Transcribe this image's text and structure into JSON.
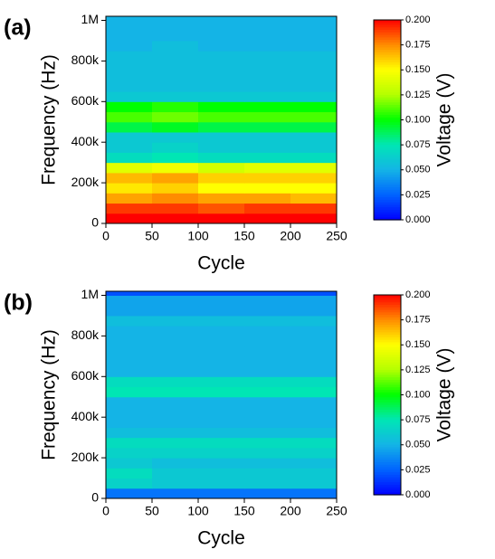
{
  "chart_data": [
    {
      "type": "heatmap",
      "panel_label": "(a)",
      "xlabel": "Cycle",
      "ylabel": "Frequency (Hz)",
      "colorbar_label": "Voltage (V)",
      "xlim": [
        0,
        250
      ],
      "xticks": [
        0,
        50,
        100,
        150,
        200,
        250
      ],
      "ylim": [
        0,
        1020000
      ],
      "yticks": [
        0,
        {
          "value": 200000,
          "label": "200k"
        },
        {
          "value": 400000,
          "label": "400k"
        },
        {
          "value": 600000,
          "label": "600k"
        },
        {
          "value": 800000,
          "label": "800k"
        },
        {
          "value": 1000000,
          "label": "1M"
        }
      ],
      "xbins": [
        0,
        50,
        100,
        150,
        200,
        250
      ],
      "ybins": [
        0,
        50000,
        100000,
        150000,
        200000,
        250000,
        300000,
        350000,
        400000,
        450000,
        500000,
        550000,
        600000,
        650000,
        700000,
        750000,
        800000,
        850000,
        900000,
        950000,
        1000000,
        1020000
      ],
      "z": [
        [
          0.2,
          0.2,
          0.2,
          0.2,
          0.2
        ],
        [
          0.19,
          0.19,
          0.185,
          0.19,
          0.19
        ],
        [
          0.17,
          0.175,
          0.17,
          0.17,
          0.165
        ],
        [
          0.155,
          0.16,
          0.15,
          0.15,
          0.15
        ],
        [
          0.165,
          0.17,
          0.16,
          0.16,
          0.16
        ],
        [
          0.14,
          0.145,
          0.135,
          0.14,
          0.14
        ],
        [
          0.07,
          0.075,
          0.07,
          0.07,
          0.07
        ],
        [
          0.06,
          0.065,
          0.06,
          0.06,
          0.06
        ],
        [
          0.06,
          0.06,
          0.06,
          0.06,
          0.06
        ],
        [
          0.09,
          0.095,
          0.09,
          0.09,
          0.09
        ],
        [
          0.11,
          0.115,
          0.11,
          0.11,
          0.11
        ],
        [
          0.1,
          0.105,
          0.1,
          0.1,
          0.1
        ],
        [
          0.06,
          0.06,
          0.06,
          0.06,
          0.06
        ],
        [
          0.055,
          0.055,
          0.055,
          0.055,
          0.055
        ],
        [
          0.055,
          0.055,
          0.055,
          0.055,
          0.055
        ],
        [
          0.055,
          0.055,
          0.055,
          0.055,
          0.055
        ],
        [
          0.055,
          0.055,
          0.055,
          0.055,
          0.055
        ],
        [
          0.05,
          0.055,
          0.05,
          0.05,
          0.05
        ],
        [
          0.05,
          0.05,
          0.05,
          0.05,
          0.05
        ],
        [
          0.05,
          0.05,
          0.05,
          0.05,
          0.05
        ],
        [
          0.05,
          0.05,
          0.05,
          0.05,
          0.05
        ]
      ],
      "clim": [
        0,
        0.2
      ],
      "cticks": [
        {
          "value": 0,
          "label": "0.000"
        },
        {
          "value": 0.025,
          "label": "0.025"
        },
        {
          "value": 0.05,
          "label": "0.050"
        },
        {
          "value": 0.075,
          "label": "0.075"
        },
        {
          "value": 0.1,
          "label": "0.100"
        },
        {
          "value": 0.125,
          "label": "0.125"
        },
        {
          "value": 0.15,
          "label": "0.150"
        },
        {
          "value": 0.175,
          "label": "0.175"
        },
        {
          "value": 0.2,
          "label": "0.200"
        }
      ],
      "colormap": [
        "#0000ff",
        "#0064ff",
        "#14b4e6",
        "#00e6b4",
        "#00ff00",
        "#b4ff00",
        "#ffff00",
        "#ff8c00",
        "#ff0000"
      ]
    },
    {
      "type": "heatmap",
      "panel_label": "(b)",
      "xlabel": "Cycle",
      "ylabel": "Frequency (Hz)",
      "colorbar_label": "Voltage (V)",
      "xlim": [
        0,
        250
      ],
      "xticks": [
        0,
        50,
        100,
        150,
        200,
        250
      ],
      "ylim": [
        0,
        1020000
      ],
      "yticks": [
        0,
        {
          "value": 200000,
          "label": "200k"
        },
        {
          "value": 400000,
          "label": "400k"
        },
        {
          "value": 600000,
          "label": "600k"
        },
        {
          "value": 800000,
          "label": "800k"
        },
        {
          "value": 1000000,
          "label": "1M"
        }
      ],
      "xbins": [
        0,
        50,
        100,
        150,
        200,
        250
      ],
      "ybins": [
        0,
        50000,
        100000,
        150000,
        200000,
        250000,
        300000,
        350000,
        400000,
        450000,
        500000,
        550000,
        600000,
        650000,
        700000,
        750000,
        800000,
        850000,
        900000,
        950000,
        1000000,
        1020000
      ],
      "z": [
        [
          0.03,
          0.03,
          0.03,
          0.03,
          0.03
        ],
        [
          0.065,
          0.06,
          0.06,
          0.06,
          0.06
        ],
        [
          0.07,
          0.06,
          0.06,
          0.06,
          0.06
        ],
        [
          0.06,
          0.055,
          0.055,
          0.055,
          0.055
        ],
        [
          0.065,
          0.065,
          0.065,
          0.065,
          0.065
        ],
        [
          0.07,
          0.07,
          0.07,
          0.07,
          0.07
        ],
        [
          0.055,
          0.055,
          0.055,
          0.055,
          0.055
        ],
        [
          0.05,
          0.05,
          0.05,
          0.05,
          0.05
        ],
        [
          0.05,
          0.05,
          0.05,
          0.05,
          0.05
        ],
        [
          0.05,
          0.05,
          0.05,
          0.05,
          0.05
        ],
        [
          0.075,
          0.075,
          0.075,
          0.075,
          0.075
        ],
        [
          0.07,
          0.07,
          0.07,
          0.07,
          0.07
        ],
        [
          0.05,
          0.05,
          0.05,
          0.05,
          0.05
        ],
        [
          0.05,
          0.05,
          0.05,
          0.05,
          0.05
        ],
        [
          0.05,
          0.05,
          0.05,
          0.05,
          0.05
        ],
        [
          0.05,
          0.05,
          0.05,
          0.05,
          0.05
        ],
        [
          0.05,
          0.05,
          0.05,
          0.05,
          0.05
        ],
        [
          0.055,
          0.055,
          0.055,
          0.055,
          0.055
        ],
        [
          0.045,
          0.045,
          0.045,
          0.045,
          0.045
        ],
        [
          0.045,
          0.045,
          0.045,
          0.045,
          0.045
        ],
        [
          0.02,
          0.02,
          0.02,
          0.02,
          0.02
        ]
      ],
      "clim": [
        0,
        0.2
      ],
      "cticks": [
        {
          "value": 0,
          "label": "0.000"
        },
        {
          "value": 0.025,
          "label": "0.025"
        },
        {
          "value": 0.05,
          "label": "0.050"
        },
        {
          "value": 0.075,
          "label": "0.075"
        },
        {
          "value": 0.1,
          "label": "0.100"
        },
        {
          "value": 0.125,
          "label": "0.125"
        },
        {
          "value": 0.15,
          "label": "0.150"
        },
        {
          "value": 0.175,
          "label": "0.175"
        },
        {
          "value": 0.2,
          "label": "0.200"
        }
      ],
      "colormap": [
        "#0000ff",
        "#0064ff",
        "#14b4e6",
        "#00e6b4",
        "#00ff00",
        "#b4ff00",
        "#ffff00",
        "#ff8c00",
        "#ff0000"
      ]
    }
  ]
}
